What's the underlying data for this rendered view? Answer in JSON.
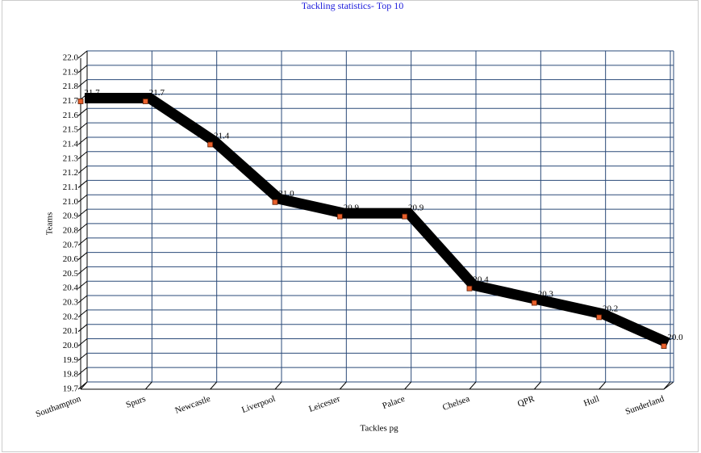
{
  "chart_data": {
    "type": "line",
    "title": "Tackling statistics- Top 10",
    "xlabel": "Tackles pg",
    "ylabel": "Teams",
    "categories": [
      "Southampton",
      "Spurs",
      "Newcastle",
      "Liverpool",
      "Leicester",
      "Palace",
      "Chelsea",
      "QPR",
      "Hull",
      "Sunderland"
    ],
    "values": [
      21.7,
      21.7,
      21.4,
      21.0,
      20.9,
      20.9,
      20.4,
      20.3,
      20.2,
      20.0
    ],
    "value_labels": [
      "21.7",
      "21.7",
      "21.4",
      "21.0",
      "20.9",
      "20.9",
      "20.4",
      "20.3",
      "20.2",
      "20.0"
    ],
    "color": "#000000",
    "marker_color": "#e8602c",
    "ylim": [
      19.7,
      22.0
    ],
    "yticks": [
      19.7,
      19.8,
      19.9,
      {
        "value": 20.0,
        "label": "20.0"
      },
      20.1,
      20.2,
      20.3,
      20.4,
      20.5,
      20.6,
      20.7,
      20.8,
      20.9,
      {
        "value": 21.0,
        "label": "21.0"
      },
      21.1,
      21.2,
      21.3,
      21.4,
      21.5,
      21.6,
      21.7,
      21.8,
      21.9,
      {
        "value": 22.0,
        "label": "22.0"
      }
    ],
    "grid": true
  }
}
